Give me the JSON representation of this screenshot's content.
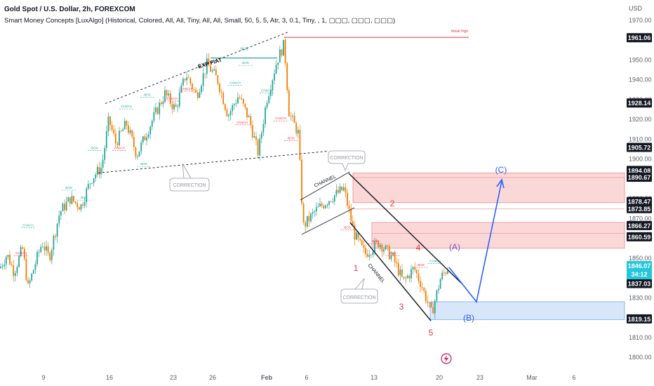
{
  "header": {
    "title": "Gold Spot / U.S. Dollar, 2h, FOREXCOM",
    "indicator": "Smart Money Concepts [LuxAlgo] (Historical, Colored, All, All, Tiny, All, All, Small, 50, 5, 5, Atr, 3, 0.1, Tiny, , 1, ▢▢▢, ▢▢▢, ▢▢▢)",
    "currency": "USD"
  },
  "chart_data": {
    "type": "candlestick",
    "symbol": "Gold Spot / U.S. Dollar",
    "timeframe": "2h",
    "ylim": [
      1798,
      1973
    ],
    "y_ticks": [
      1800,
      1810,
      1820,
      1830,
      1840,
      1850,
      1860,
      1870,
      1880,
      1890,
      1900,
      1910,
      1920,
      1930,
      1940,
      1950,
      1960,
      1970
    ],
    "x_ticks": [
      "9",
      "16",
      "23",
      "26",
      "Feb",
      "6",
      "13",
      "20",
      "23",
      "Mar",
      "6"
    ],
    "price_path": [
      [
        0,
        1845
      ],
      [
        10,
        1852
      ],
      [
        20,
        1843
      ],
      [
        32,
        1855
      ],
      [
        40,
        1835
      ],
      [
        50,
        1847
      ],
      [
        60,
        1858
      ],
      [
        70,
        1850
      ],
      [
        85,
        1873
      ],
      [
        100,
        1880
      ],
      [
        115,
        1876
      ],
      [
        130,
        1890
      ],
      [
        145,
        1896
      ],
      [
        155,
        1920
      ],
      [
        165,
        1908
      ],
      [
        180,
        1918
      ],
      [
        195,
        1902
      ],
      [
        215,
        1918
      ],
      [
        235,
        1933
      ],
      [
        250,
        1925
      ],
      [
        265,
        1943
      ],
      [
        280,
        1932
      ],
      [
        295,
        1948
      ],
      [
        310,
        1940
      ],
      [
        325,
        1922
      ],
      [
        340,
        1932
      ],
      [
        355,
        1920
      ],
      [
        368,
        1903
      ],
      [
        380,
        1930
      ],
      [
        395,
        1950
      ],
      [
        405,
        1958
      ],
      [
        412,
        1923
      ],
      [
        425,
        1913
      ],
      [
        432,
        1866
      ],
      [
        450,
        1874
      ],
      [
        470,
        1880
      ],
      [
        490,
        1885
      ],
      [
        505,
        1862
      ],
      [
        520,
        1852
      ],
      [
        540,
        1858
      ],
      [
        560,
        1850
      ],
      [
        575,
        1838
      ],
      [
        590,
        1845
      ],
      [
        600,
        1837
      ],
      [
        615,
        1822
      ],
      [
        628,
        1840
      ],
      [
        640,
        1846
      ]
    ],
    "horizontal_levels": [
      {
        "label": "Weak High",
        "value": 1961.06,
        "color": "#f23645"
      },
      {
        "label": "",
        "value": 1928.14,
        "color": "#131722"
      },
      {
        "label": "",
        "value": 1905.72,
        "color": "#131722"
      },
      {
        "label": "",
        "value": 1894.08,
        "color": "#131722"
      },
      {
        "label": "",
        "value": 1878.47,
        "color": "#131722"
      },
      {
        "label": "",
        "value": 1866.27,
        "color": "#131722"
      },
      {
        "label": "",
        "value": 1860.59,
        "color": "#131722"
      },
      {
        "label": "",
        "value": 1837.03,
        "color": "#131722"
      },
      {
        "label": "",
        "value": 1819.15,
        "color": "#131722"
      }
    ],
    "price_badges": [
      {
        "value": "1961.06",
        "y": 1961.06
      },
      {
        "value": "1928.14",
        "y": 1928.14
      },
      {
        "value": "1905.72",
        "y": 1905.72
      },
      {
        "value": "1894.08",
        "y": 1894.08
      },
      {
        "value": "1890.67",
        "y": 1890.67
      },
      {
        "value": "1878.47",
        "y": 1878.47
      },
      {
        "value": "1873.85",
        "y": 1874.8
      },
      {
        "value": "1866.27",
        "y": 1866.27
      },
      {
        "value": "1860.59",
        "y": 1860.59
      },
      {
        "value": "1837.03",
        "y": 1837.03
      },
      {
        "value": "1819.15",
        "y": 1819.15
      }
    ],
    "current_price": {
      "value": "1846.07",
      "countdown": "34:12",
      "y": 1846.07
    },
    "zones": [
      {
        "type": "supply",
        "from": 1878,
        "to": 1893,
        "color": "#f7a8a8"
      },
      {
        "type": "supply",
        "from": 1855,
        "to": 1868,
        "color": "#f7a8a8"
      },
      {
        "type": "demand",
        "from": 1819,
        "to": 1828,
        "color": "#a9c7f5"
      }
    ],
    "annotations": {
      "exp_flat": "EXP FIAT",
      "correction": "CORRECTION",
      "channel": "CHANNEL",
      "wave_1": "1",
      "wave_2": "2",
      "wave_3": "3",
      "wave_4": "4",
      "wave_5": "5",
      "wave_a": "(A)",
      "wave_b": "(B)",
      "wave_c": "(C)",
      "bos": "BOS",
      "choch": "CHoCH",
      "weak_high": "Weak High"
    },
    "colors": {
      "up": "#26a69a",
      "down": "#f57c00",
      "wave_red": "#e23a48",
      "wave_blue": "#2962ff",
      "wave_purple": "#7e57c2",
      "current_price": "#26c6da"
    }
  }
}
